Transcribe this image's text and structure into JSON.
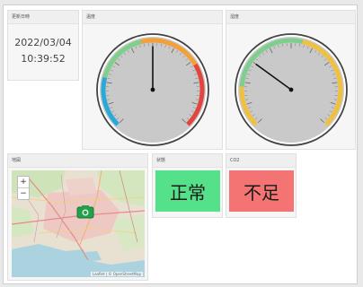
{
  "panels": {
    "clock": {
      "title": "更新日時",
      "date": "2022/03/04",
      "time": "10:39:52"
    },
    "temperature": {
      "title": "温度",
      "value_fraction": 0.5
    },
    "humidity": {
      "title": "湿度",
      "value_fraction": 0.3
    },
    "map": {
      "title": "地図",
      "zoom_in": "+",
      "zoom_out": "−",
      "attribution": "Leaflet | © OpenStreetMap"
    },
    "status1": {
      "title": "状態",
      "text": "正常",
      "color": "#55e08a"
    },
    "status2": {
      "title": "CO2",
      "text": "不足",
      "color": "#f47474"
    }
  },
  "colors": {
    "gauge_cold": "#2aa9d6",
    "gauge_mid": "#7fcf8c",
    "gauge_warm": "#f3a03a",
    "gauge_hot": "#e2453e",
    "gauge_yellow": "#f0c040",
    "map_marker": "#22a04a"
  },
  "icons": {
    "marker": "camera-marker-icon"
  }
}
